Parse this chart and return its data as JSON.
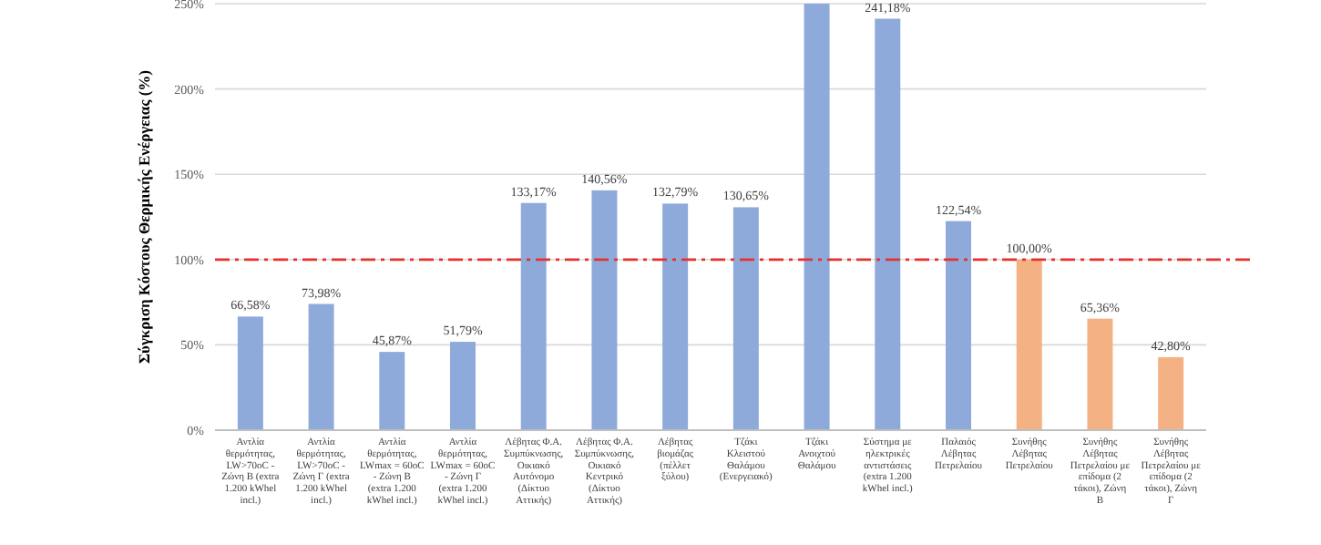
{
  "chart_data": {
    "type": "bar",
    "ylabel": "Σύγκριση Κόστους Θερμικής Ενέργειας (%)",
    "categories": [
      "Αντλία θερμότητας, LW>70oC - Ζώνη Β (extra 1.200 kWhel incl.)",
      "Αντλία θερμότητας, LW>70oC - Ζώνη Γ (extra 1.200 kWhel incl.)",
      "Αντλία θερμότητας, LWmax = 60oC - Ζώνη Β (extra 1.200 kWhel incl.)",
      "Αντλία θερμότητας, LWmax = 60oC - Ζώνη Γ (extra 1.200 kWhel incl.)",
      "Λέβητας Φ.Α. Συμπύκνωσης, Οικιακό Αυτόνομο (Δίκτυο Αττικής)",
      "Λέβητας Φ.Α. Συμπύκνωσης, Οικιακό Κεντρικό (Δίκτυο Αττικής)",
      "Λέβητας βιομάζας (πέλλετ ξύλου)",
      "Τζάκι Κλειστού Θαλάμου (Ενεργειακό)",
      "Τζάκι Ανοιχτού Θαλάμου",
      "Σύστημα με ηλεκτρικές αντιστάσεις (extra 1.200 kWhel incl.)",
      "Παλαιός Λέβητας Πετρελαίου",
      "Συνήθης Λέβητας Πετρελαίου",
      "Συνήθης Λέβητας Πετρελαίου με επίδομα (2 τάκοι), Ζώνη Β",
      "Συνήθης Λέβητας Πετρελαίου με επίδομα (2 τάκοι), Ζώνη Γ"
    ],
    "values": [
      66.58,
      73.98,
      45.87,
      51.79,
      133.17,
      140.56,
      132.79,
      130.65,
      250,
      241.18,
      122.54,
      100,
      65.36,
      42.8
    ],
    "colors": [
      "#8eaadb",
      "#8eaadb",
      "#8eaadb",
      "#8eaadb",
      "#8eaadb",
      "#8eaadb",
      "#8eaadb",
      "#8eaadb",
      "#8eaadb",
      "#8eaadb",
      "#8eaadb",
      "#f4b183",
      "#f4b183",
      "#f4b183"
    ],
    "value_labels": [
      "66,58%",
      "73,98%",
      "45,87%",
      "51,79%",
      "133,17%",
      "140,56%",
      "132,79%",
      "130,65%",
      null,
      "241,18%",
      "122,54%",
      "100,00%",
      "65,36%",
      "42,80%"
    ],
    "ylim": [
      0,
      250
    ],
    "yticks": [
      {
        "value": 0,
        "label": "0%"
      },
      {
        "value": 50,
        "label": "50%"
      },
      {
        "value": 100,
        "label": "100%"
      },
      {
        "value": 150,
        "label": "150%"
      },
      {
        "value": 200,
        "label": "200%"
      },
      {
        "value": 250,
        "label": "250%"
      }
    ],
    "grid": "y",
    "ref_lines": [
      {
        "axis": "y",
        "value": 100,
        "color": "#e8312f",
        "line_style": "dashdot"
      }
    ]
  }
}
